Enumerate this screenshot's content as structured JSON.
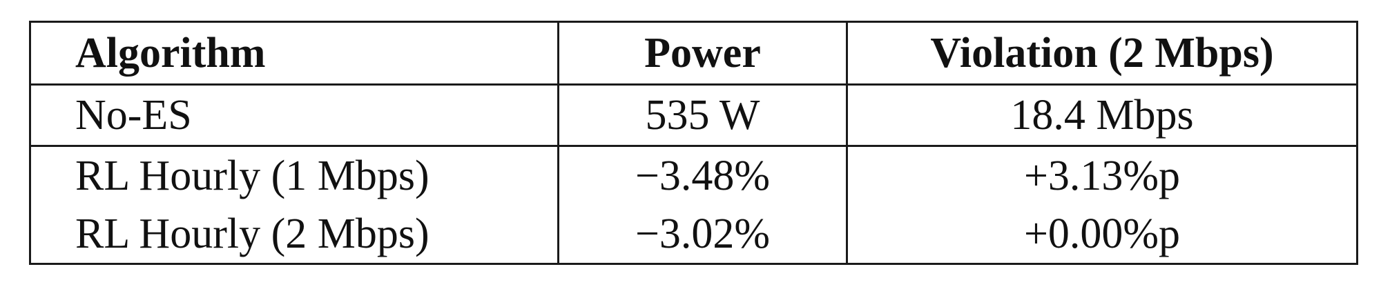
{
  "table": {
    "headers": [
      "Algorithm",
      "Power",
      "Violation (2 Mbps)"
    ],
    "rows": [
      [
        "No-ES",
        "535 W",
        "18.4 Mbps"
      ],
      [
        "RL Hourly (1 Mbps)",
        "−3.48%",
        "+3.13%p"
      ],
      [
        "RL Hourly (2 Mbps)",
        "−3.02%",
        "+0.00%p"
      ]
    ]
  }
}
